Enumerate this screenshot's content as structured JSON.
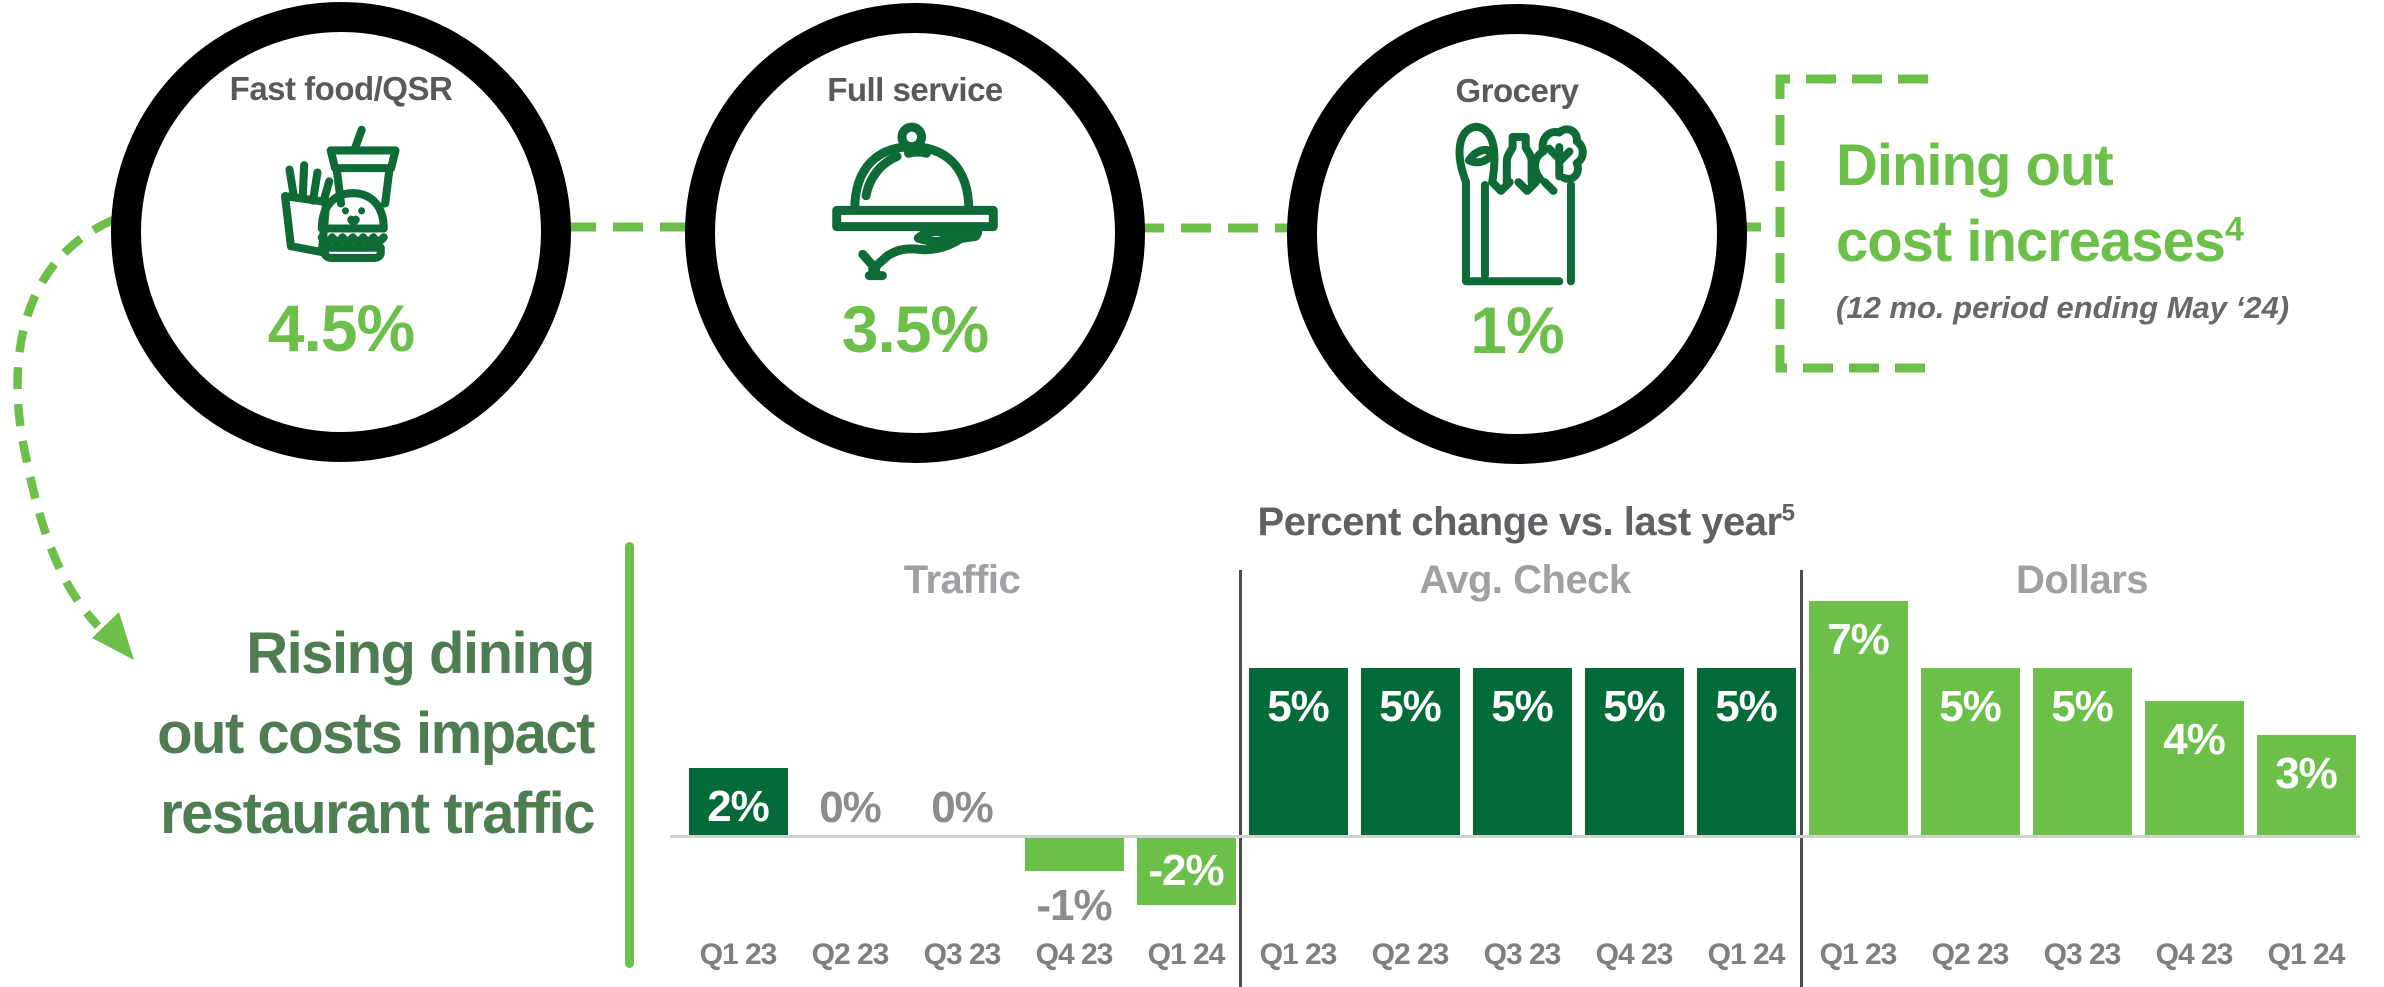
{
  "colors": {
    "light_green": "#6CC04A",
    "dark_green": "#046A38",
    "icon_green": "#0F6B35",
    "muted_green": "#4E7D51",
    "dark_gray": "#58595B",
    "mid_gray": "#8A8C8E",
    "light_gray": "#9EA0A3",
    "title_gray": "#606164",
    "ring_black": "#000000"
  },
  "top_row": {
    "categories": [
      {
        "label": "Fast food/QSR",
        "value": "4.5%",
        "icon": "fast-food-icon"
      },
      {
        "label": "Full service",
        "value": "3.5%",
        "icon": "serving-tray-icon"
      },
      {
        "label": "Grocery",
        "value": "1%",
        "icon": "grocery-bag-icon"
      }
    ],
    "callout": {
      "line1": "Dining out",
      "line2": "cost increases",
      "footnote_marker": "4",
      "subtitle": "(12 mo. period ending May ‘24)"
    }
  },
  "left_callout": {
    "line1": "Rising dining",
    "line2": "out costs impact",
    "line3": "restaurant traffic"
  },
  "chart_data": {
    "type": "bar",
    "title": "Percent change vs. last year",
    "title_footnote_marker": "5",
    "unit": "percent change vs. last year",
    "gridlines": false,
    "legend": false,
    "baseline_value": 0,
    "ylim": [
      -2,
      7
    ],
    "categories": [
      "Q1 23",
      "Q2 23",
      "Q3 23",
      "Q4 23",
      "Q1 24"
    ],
    "series": [
      {
        "name": "Traffic",
        "values": [
          2,
          0,
          0,
          -1,
          -2
        ],
        "labels": [
          "2%",
          "0%",
          "0%",
          "-1%",
          "-2%"
        ],
        "bar_colors": [
          "#046A38",
          null,
          null,
          "#6CC04A",
          "#6CC04A"
        ],
        "label_styles": [
          "inside-top",
          "above-baseline",
          "above-baseline",
          "below-bar",
          "inside-middle"
        ],
        "label_colors": [
          "#FFFFFF",
          "#8A8C8E",
          "#8A8C8E",
          "#8A8C8E",
          "#FFFFFF"
        ]
      },
      {
        "name": "Avg. Check",
        "values": [
          5,
          5,
          5,
          5,
          5
        ],
        "labels": [
          "5%",
          "5%",
          "5%",
          "5%",
          "5%"
        ],
        "bar_colors": [
          "#046A38",
          "#046A38",
          "#046A38",
          "#046A38",
          "#046A38"
        ],
        "label_styles": [
          "inside-top",
          "inside-top",
          "inside-top",
          "inside-top",
          "inside-top"
        ],
        "label_colors": [
          "#FFFFFF",
          "#FFFFFF",
          "#FFFFFF",
          "#FFFFFF",
          "#FFFFFF"
        ]
      },
      {
        "name": "Dollars",
        "values": [
          7,
          5,
          5,
          4,
          3
        ],
        "labels": [
          "7%",
          "5%",
          "5%",
          "4%",
          "3%"
        ],
        "bar_colors": [
          "#6CC04A",
          "#6CC04A",
          "#6CC04A",
          "#6CC04A",
          "#6CC04A"
        ],
        "label_styles": [
          "inside-top",
          "inside-top",
          "inside-top",
          "inside-top",
          "inside-top"
        ],
        "label_colors": [
          "#FFFFFF",
          "#FFFFFF",
          "#FFFFFF",
          "#FFFFFF",
          "#FFFFFF"
        ]
      }
    ]
  }
}
